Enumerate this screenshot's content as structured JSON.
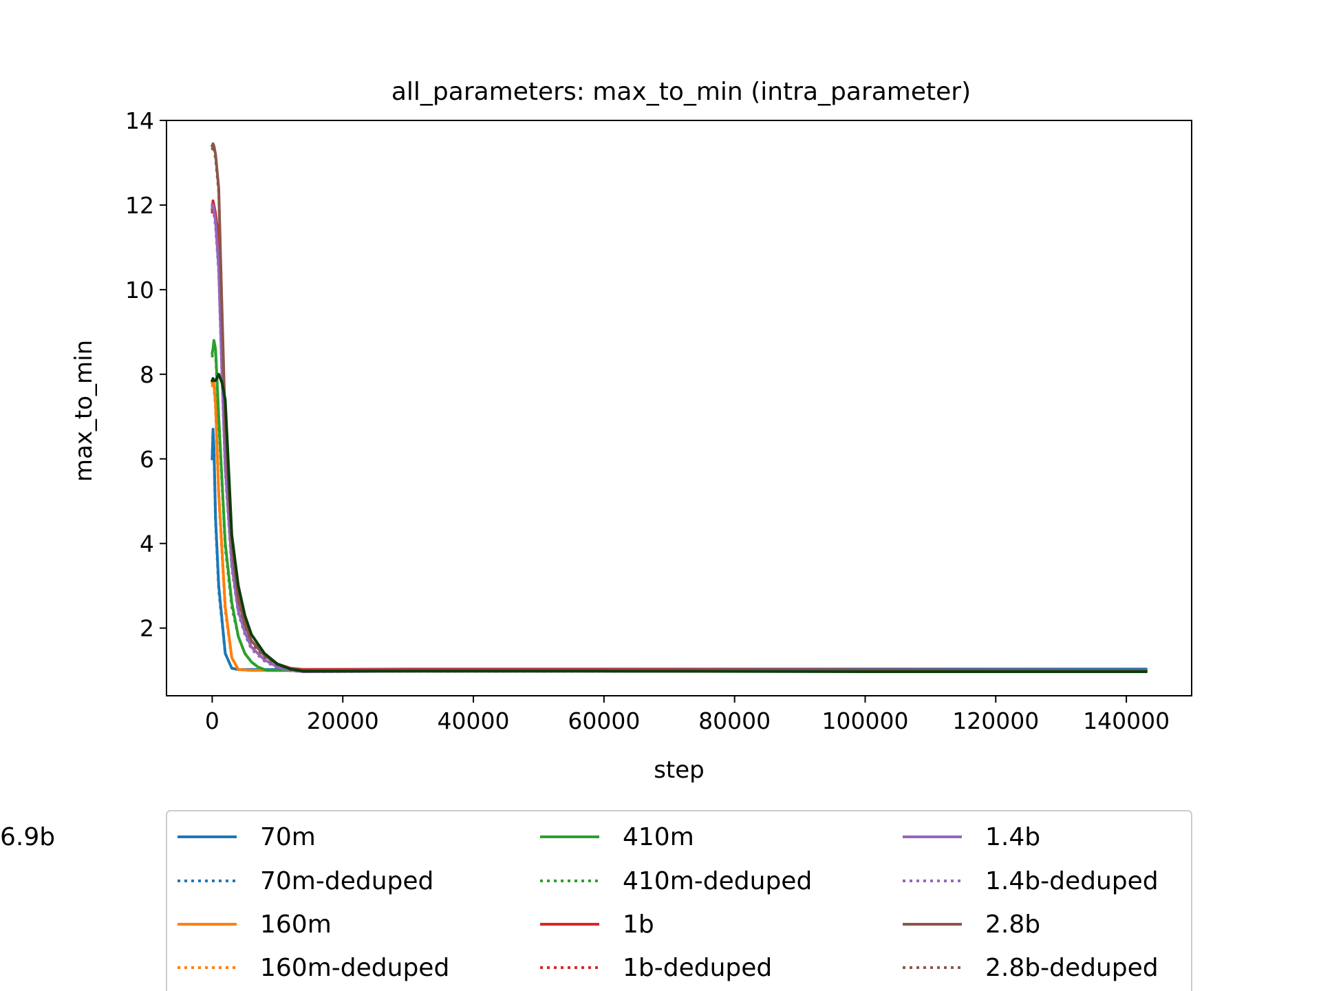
{
  "chart_data": {
    "type": "line",
    "title": "all_parameters: max_to_min (intra_parameter)",
    "xlabel": "step",
    "ylabel": "max_to_min",
    "xlim": [
      -7000,
      150000
    ],
    "ylim": [
      0.4,
      14
    ],
    "xticks": [
      0,
      20000,
      40000,
      60000,
      80000,
      100000,
      120000,
      140000
    ],
    "xtick_labels": [
      "0",
      "20000",
      "40000",
      "60000",
      "80000",
      "100000",
      "120000",
      "140000"
    ],
    "yticks": [
      2,
      4,
      6,
      8,
      10,
      12,
      14
    ],
    "ytick_labels": [
      "2",
      "4",
      "6",
      "8",
      "10",
      "12",
      "14"
    ],
    "grid": false,
    "legend_position": "below-plot",
    "series": [
      {
        "name": "70m",
        "color": "#1f77b4",
        "style": "solid",
        "x": [
          0,
          128,
          256,
          512,
          1000,
          2000,
          3000,
          4000,
          10000,
          30000,
          60000,
          100000,
          143000
        ],
        "y": [
          6.0,
          6.7,
          6.3,
          4.6,
          3.0,
          1.4,
          1.05,
          1.02,
          1.02,
          1.03,
          1.03,
          1.03,
          1.03
        ]
      },
      {
        "name": "70m-deduped",
        "color": "#1f77b4",
        "style": "dotted",
        "x": [
          0,
          128,
          256,
          512,
          1000,
          2000,
          3000,
          4000,
          10000,
          30000,
          60000,
          100000,
          143000
        ],
        "y": [
          6.0,
          6.7,
          6.2,
          4.5,
          2.9,
          1.4,
          1.05,
          1.02,
          1.01,
          1.02,
          1.02,
          1.02,
          1.02
        ]
      },
      {
        "name": "160m",
        "color": "#ff7f0e",
        "style": "solid",
        "x": [
          0,
          128,
          256,
          512,
          1000,
          2000,
          3000,
          4000,
          6000,
          10000,
          30000,
          60000,
          100000,
          143000
        ],
        "y": [
          7.8,
          7.85,
          7.8,
          7.3,
          5.2,
          2.5,
          1.3,
          1.02,
          1.0,
          1.0,
          1.0,
          1.0,
          1.0,
          1.0
        ]
      },
      {
        "name": "160m-deduped",
        "color": "#ff7f0e",
        "style": "dotted",
        "x": [
          0,
          128,
          256,
          512,
          1000,
          2000,
          3000,
          4000,
          6000,
          10000,
          30000,
          60000,
          100000,
          143000
        ],
        "y": [
          7.7,
          7.8,
          7.7,
          7.2,
          5.1,
          2.4,
          1.3,
          1.02,
          1.0,
          1.0,
          1.0,
          1.0,
          1.0,
          1.0
        ]
      },
      {
        "name": "410m",
        "color": "#2ca02c",
        "style": "solid",
        "x": [
          0,
          128,
          256,
          512,
          1000,
          2000,
          3000,
          4000,
          5000,
          6000,
          7000,
          8000,
          8500,
          10000,
          30000,
          60000,
          100000,
          143000
        ],
        "y": [
          8.5,
          8.6,
          8.8,
          8.6,
          7.0,
          4.0,
          2.6,
          1.8,
          1.4,
          1.2,
          1.08,
          1.02,
          1.0,
          1.0,
          1.0,
          1.0,
          1.0,
          1.0
        ]
      },
      {
        "name": "410m-deduped",
        "color": "#2ca02c",
        "style": "dotted",
        "x": [
          0,
          128,
          256,
          512,
          1000,
          2000,
          3000,
          4000,
          5000,
          6000,
          7000,
          8000,
          8500,
          10000,
          30000,
          60000,
          100000,
          143000
        ],
        "y": [
          8.4,
          8.6,
          8.7,
          8.5,
          6.9,
          3.9,
          2.5,
          1.8,
          1.4,
          1.2,
          1.08,
          1.02,
          1.0,
          1.0,
          1.0,
          1.0,
          1.0,
          1.0
        ]
      },
      {
        "name": "1b",
        "color": "#d62728",
        "style": "solid",
        "x": [
          0,
          128,
          256,
          512,
          1000,
          1500,
          2000,
          3000,
          4000,
          5000,
          6000,
          8000,
          10000,
          12000,
          14000,
          30000,
          60000,
          100000,
          143000
        ],
        "y": [
          11.9,
          12.1,
          12.0,
          11.8,
          11.2,
          9.0,
          6.5,
          3.9,
          2.7,
          2.1,
          1.7,
          1.35,
          1.15,
          1.05,
          1.02,
          1.02,
          1.02,
          1.01,
          1.0
        ]
      },
      {
        "name": "1b-deduped",
        "color": "#d62728",
        "style": "dotted",
        "x": [
          0,
          128,
          256,
          512,
          1000,
          1500,
          2000,
          3000,
          4000,
          5000,
          6000,
          8000,
          10000,
          12000,
          14000,
          30000,
          60000,
          100000,
          143000
        ],
        "y": [
          11.8,
          12.0,
          11.9,
          11.7,
          11.0,
          8.8,
          6.3,
          3.8,
          2.6,
          2.0,
          1.65,
          1.3,
          1.12,
          1.04,
          1.0,
          1.0,
          1.0,
          1.0,
          1.0
        ]
      },
      {
        "name": "1.4b",
        "color": "#9467bd",
        "style": "solid",
        "x": [
          0,
          128,
          256,
          512,
          1000,
          1500,
          2000,
          3000,
          4000,
          5000,
          6000,
          8000,
          10000,
          12000,
          14000,
          30000,
          60000,
          100000,
          143000
        ],
        "y": [
          12.0,
          12.0,
          11.9,
          11.6,
          10.5,
          8.0,
          5.8,
          3.5,
          2.4,
          1.9,
          1.55,
          1.25,
          1.08,
          1.0,
          0.97,
          0.98,
          0.98,
          0.98,
          0.98
        ]
      },
      {
        "name": "1.4b-deduped",
        "color": "#9467bd",
        "style": "dotted",
        "x": [
          0,
          128,
          256,
          512,
          1000,
          1500,
          2000,
          3000,
          4000,
          5000,
          6000,
          8000,
          10000,
          12000,
          14000,
          30000,
          60000,
          100000,
          143000
        ],
        "y": [
          11.9,
          12.0,
          11.8,
          11.5,
          10.4,
          7.9,
          5.7,
          3.4,
          2.35,
          1.85,
          1.5,
          1.22,
          1.06,
          0.99,
          0.97,
          0.98,
          0.98,
          0.98,
          0.98
        ]
      },
      {
        "name": "2.8b",
        "color": "#8c564b",
        "style": "solid",
        "x": [
          0,
          128,
          256,
          512,
          1000,
          1500,
          2000,
          3000,
          4000,
          5000,
          6000,
          8000,
          10000,
          12000,
          14000,
          30000,
          60000,
          100000,
          143000
        ],
        "y": [
          13.4,
          13.45,
          13.4,
          13.2,
          12.4,
          9.5,
          6.8,
          4.0,
          2.7,
          2.1,
          1.7,
          1.35,
          1.15,
          1.04,
          1.0,
          1.0,
          1.0,
          0.99,
          0.99
        ]
      },
      {
        "name": "2.8b-deduped",
        "color": "#8c564b",
        "style": "dotted",
        "x": [
          0,
          128,
          256,
          512,
          1000,
          1500,
          2000,
          3000,
          4000,
          5000,
          6000,
          8000,
          10000,
          12000,
          14000,
          30000,
          60000,
          100000,
          143000
        ],
        "y": [
          13.3,
          13.4,
          13.3,
          13.1,
          12.3,
          9.4,
          6.7,
          3.9,
          2.65,
          2.05,
          1.68,
          1.32,
          1.12,
          1.02,
          0.98,
          0.98,
          0.98,
          0.98,
          0.98
        ]
      },
      {
        "name": "6.9b",
        "color": "#0b3d0b",
        "style": "solid",
        "x": [
          0,
          128,
          256,
          512,
          1000,
          1500,
          2000,
          2500,
          3000,
          4000,
          5000,
          6000,
          8000,
          10000,
          12000,
          14000,
          30000,
          60000,
          100000,
          143000
        ],
        "y": [
          7.85,
          7.9,
          7.85,
          7.85,
          8.0,
          7.8,
          7.4,
          5.8,
          4.2,
          3.0,
          2.3,
          1.85,
          1.4,
          1.15,
          1.03,
          0.98,
          0.98,
          0.98,
          0.97,
          0.97
        ]
      }
    ]
  }
}
